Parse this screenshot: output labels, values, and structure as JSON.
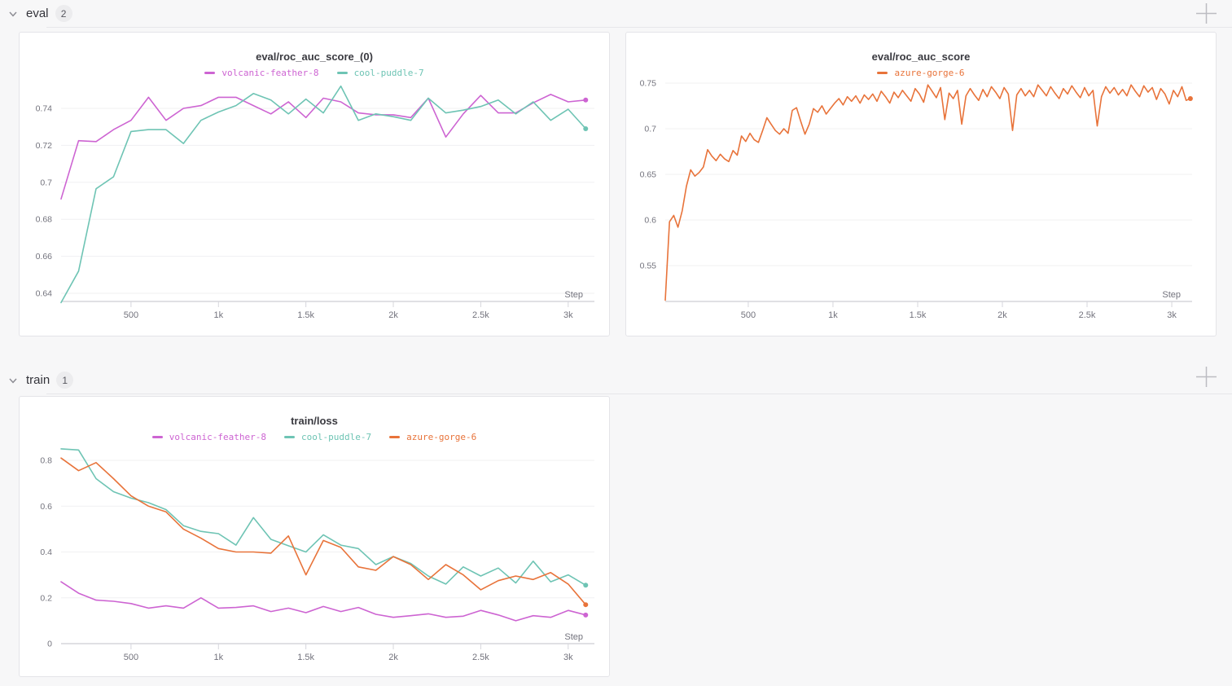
{
  "page": {
    "background": "#f7f7f8"
  },
  "sections": [
    {
      "label": "eval",
      "count": "2"
    },
    {
      "label": "train",
      "count": "1"
    }
  ],
  "controls": {
    "collapse_icon": "chevron-down",
    "add_panel_icon": "plus"
  },
  "colors": {
    "volcanic_feather_8": "#cd64d2",
    "cool_puddle_7": "#6ec4b4",
    "azure_gorge_6": "#e8733a",
    "grid": "#f0f0f2",
    "axis": "#d6d6dc",
    "axis_text": "#73737d"
  },
  "chart_data": [
    {
      "type": "line",
      "title": "eval/roc_auc_score_(0)",
      "xlabel": "Step",
      "grid": true,
      "legend_position": "top",
      "xlim": [
        100,
        3150
      ],
      "ylim": [
        0.6356,
        0.751
      ],
      "x_ticks": [
        {
          "v": 500,
          "label": "500"
        },
        {
          "v": 1000,
          "label": "1k"
        },
        {
          "v": 1500,
          "label": "1.5k"
        },
        {
          "v": 2000,
          "label": "2k"
        },
        {
          "v": 2500,
          "label": "2.5k"
        },
        {
          "v": 3000,
          "label": "3k"
        }
      ],
      "y_ticks": [
        {
          "v": 0.64,
          "label": "0.64"
        },
        {
          "v": 0.66,
          "label": "0.66"
        },
        {
          "v": 0.68,
          "label": "0.68"
        },
        {
          "v": 0.7,
          "label": "0.7"
        },
        {
          "v": 0.72,
          "label": "0.72"
        },
        {
          "v": 0.74,
          "label": "0.74"
        }
      ],
      "series": [
        {
          "name": "volcanic-feather-8",
          "color": "#cd64d2",
          "end_dot": true,
          "step_start": 100,
          "step_interval": 100,
          "values": [
            0.691,
            0.7225,
            0.722,
            0.7285,
            0.7335,
            0.746,
            0.7335,
            0.74,
            0.7415,
            0.746,
            0.746,
            0.7415,
            0.737,
            0.7435,
            0.735,
            0.7455,
            0.7435,
            0.7375,
            0.7365,
            0.7365,
            0.735,
            0.7455,
            0.7245,
            0.737,
            0.747,
            0.7375,
            0.7375,
            0.743,
            0.7475,
            0.7435,
            0.7445
          ]
        },
        {
          "name": "cool-puddle-7",
          "color": "#6ec4b4",
          "end_dot": true,
          "step_start": 100,
          "step_interval": 100,
          "values": [
            0.635,
            0.652,
            0.6965,
            0.703,
            0.7275,
            0.7285,
            0.7285,
            0.721,
            0.7335,
            0.738,
            0.7415,
            0.748,
            0.7445,
            0.737,
            0.745,
            0.7375,
            0.752,
            0.7335,
            0.737,
            0.7355,
            0.7335,
            0.7455,
            0.7375,
            0.739,
            0.741,
            0.7445,
            0.737,
            0.7435,
            0.7335,
            0.7395,
            0.729
          ]
        }
      ]
    },
    {
      "type": "line",
      "title": "eval/roc_auc_score",
      "xlabel": "Step",
      "grid": true,
      "legend_position": "top",
      "xlim": [
        10,
        3120
      ],
      "ylim": [
        0.5107,
        0.7562
      ],
      "x_ticks": [
        {
          "v": 500,
          "label": "500"
        },
        {
          "v": 1000,
          "label": "1k"
        },
        {
          "v": 1500,
          "label": "1.5k"
        },
        {
          "v": 2000,
          "label": "2k"
        },
        {
          "v": 2500,
          "label": "2.5k"
        },
        {
          "v": 3000,
          "label": "3k"
        }
      ],
      "y_ticks": [
        {
          "v": 0.55,
          "label": "0.55"
        },
        {
          "v": 0.6,
          "label": "0.6"
        },
        {
          "v": 0.65,
          "label": "0.65"
        },
        {
          "v": 0.7,
          "label": "0.7"
        },
        {
          "v": 0.75,
          "label": "0.75"
        }
      ],
      "series": [
        {
          "name": "azure-gorge-6",
          "color": "#e8733a",
          "end_dot": true,
          "step_start": 10,
          "step_interval": 25,
          "values": [
            0.512,
            0.598,
            0.605,
            0.592,
            0.61,
            0.637,
            0.655,
            0.648,
            0.652,
            0.658,
            0.677,
            0.67,
            0.665,
            0.672,
            0.667,
            0.664,
            0.676,
            0.671,
            0.692,
            0.686,
            0.695,
            0.688,
            0.685,
            0.698,
            0.712,
            0.705,
            0.698,
            0.694,
            0.7,
            0.695,
            0.72,
            0.723,
            0.708,
            0.694,
            0.705,
            0.722,
            0.718,
            0.725,
            0.716,
            0.722,
            0.728,
            0.733,
            0.726,
            0.735,
            0.73,
            0.736,
            0.728,
            0.737,
            0.732,
            0.738,
            0.73,
            0.741,
            0.735,
            0.728,
            0.74,
            0.734,
            0.742,
            0.736,
            0.73,
            0.744,
            0.738,
            0.729,
            0.748,
            0.741,
            0.734,
            0.745,
            0.71,
            0.739,
            0.733,
            0.742,
            0.705,
            0.736,
            0.744,
            0.737,
            0.731,
            0.743,
            0.735,
            0.746,
            0.74,
            0.733,
            0.745,
            0.738,
            0.698,
            0.737,
            0.744,
            0.736,
            0.742,
            0.735,
            0.748,
            0.742,
            0.736,
            0.746,
            0.739,
            0.733,
            0.744,
            0.738,
            0.747,
            0.74,
            0.734,
            0.745,
            0.736,
            0.742,
            0.703,
            0.735,
            0.746,
            0.739,
            0.745,
            0.737,
            0.743,
            0.736,
            0.748,
            0.741,
            0.735,
            0.747,
            0.74,
            0.745,
            0.732,
            0.744,
            0.738,
            0.727,
            0.742,
            0.735,
            0.746,
            0.731,
            0.733
          ]
        }
      ]
    },
    {
      "type": "line",
      "title": "train/loss",
      "xlabel": "Step",
      "grid": true,
      "legend_position": "top",
      "xlim": [
        100,
        3150
      ],
      "ylim": [
        0,
        0.864
      ],
      "x_ticks": [
        {
          "v": 500,
          "label": "500"
        },
        {
          "v": 1000,
          "label": "1k"
        },
        {
          "v": 1500,
          "label": "1.5k"
        },
        {
          "v": 2000,
          "label": "2k"
        },
        {
          "v": 2500,
          "label": "2.5k"
        },
        {
          "v": 3000,
          "label": "3k"
        }
      ],
      "y_ticks": [
        {
          "v": 0,
          "label": "0"
        },
        {
          "v": 0.2,
          "label": "0.2"
        },
        {
          "v": 0.4,
          "label": "0.4"
        },
        {
          "v": 0.6,
          "label": "0.6"
        },
        {
          "v": 0.8,
          "label": "0.8"
        }
      ],
      "series": [
        {
          "name": "volcanic-feather-8",
          "color": "#cd64d2",
          "end_dot": true,
          "step_start": 100,
          "step_interval": 100,
          "values": [
            0.27,
            0.22,
            0.19,
            0.185,
            0.175,
            0.155,
            0.165,
            0.155,
            0.2,
            0.155,
            0.158,
            0.165,
            0.14,
            0.155,
            0.135,
            0.162,
            0.14,
            0.158,
            0.128,
            0.115,
            0.122,
            0.13,
            0.115,
            0.12,
            0.145,
            0.125,
            0.1,
            0.122,
            0.115,
            0.145,
            0.125
          ]
        },
        {
          "name": "cool-puddle-7",
          "color": "#6ec4b4",
          "end_dot": true,
          "step_start": 100,
          "step_interval": 100,
          "values": [
            0.85,
            0.845,
            0.72,
            0.663,
            0.635,
            0.615,
            0.585,
            0.515,
            0.49,
            0.48,
            0.43,
            0.55,
            0.455,
            0.427,
            0.4,
            0.475,
            0.43,
            0.415,
            0.345,
            0.38,
            0.35,
            0.295,
            0.26,
            0.335,
            0.295,
            0.33,
            0.265,
            0.36,
            0.27,
            0.3,
            0.255
          ]
        },
        {
          "name": "azure-gorge-6",
          "color": "#e8733a",
          "end_dot": true,
          "step_start": 100,
          "step_interval": 100,
          "values": [
            0.81,
            0.755,
            0.79,
            0.72,
            0.645,
            0.6,
            0.575,
            0.5,
            0.46,
            0.415,
            0.4,
            0.4,
            0.395,
            0.47,
            0.3,
            0.45,
            0.42,
            0.335,
            0.32,
            0.38,
            0.345,
            0.28,
            0.345,
            0.3,
            0.235,
            0.275,
            0.295,
            0.28,
            0.31,
            0.26,
            0.17
          ]
        }
      ]
    }
  ]
}
